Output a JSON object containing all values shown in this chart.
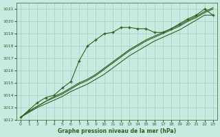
{
  "background_color": "#c8eae0",
  "grid_color": "#a8d4c8",
  "line_color": "#2d6020",
  "title": "Graphe pression niveau de la mer (hPa)",
  "xlim": [
    -0.5,
    23.5
  ],
  "ylim": [
    1012,
    1021.5
  ],
  "xticks": [
    0,
    1,
    2,
    3,
    4,
    5,
    6,
    7,
    8,
    9,
    10,
    11,
    12,
    13,
    14,
    15,
    16,
    17,
    18,
    19,
    20,
    21,
    22,
    23
  ],
  "yticks": [
    1012,
    1013,
    1014,
    1015,
    1016,
    1017,
    1018,
    1019,
    1020,
    1021
  ],
  "series_spike_x": [
    0,
    1,
    2,
    3,
    4,
    5,
    6,
    7,
    8,
    9,
    10,
    11,
    12,
    13,
    14,
    15,
    16,
    17,
    18,
    19,
    20,
    21,
    22,
    23
  ],
  "series_spike_y": [
    1012.2,
    1012.8,
    1013.4,
    1013.8,
    1014.0,
    1014.6,
    1015.1,
    1016.8,
    1018.0,
    1018.5,
    1019.0,
    1019.1,
    1019.5,
    1019.5,
    1019.4,
    1019.4,
    1019.1,
    1019.1,
    1019.4,
    1019.8,
    1020.2,
    1020.5,
    1021.0,
    1020.5
  ],
  "series_line1_x": [
    0,
    1,
    2,
    3,
    4,
    5,
    6,
    7,
    8,
    9,
    10,
    11,
    12,
    13,
    14,
    15,
    16,
    17,
    18,
    19,
    20,
    21,
    22,
    23
  ],
  "series_line1_y": [
    1012.2,
    1012.6,
    1013.0,
    1013.3,
    1013.6,
    1013.9,
    1014.3,
    1014.6,
    1014.9,
    1015.3,
    1015.7,
    1016.2,
    1016.7,
    1017.2,
    1017.6,
    1018.0,
    1018.4,
    1018.7,
    1019.0,
    1019.3,
    1019.7,
    1020.1,
    1020.5,
    1020.5
  ],
  "series_line2_x": [
    0,
    1,
    2,
    3,
    4,
    5,
    6,
    7,
    8,
    9,
    10,
    11,
    12,
    13,
    14,
    15,
    16,
    17,
    18,
    19,
    20,
    21,
    22,
    23
  ],
  "series_line2_y": [
    1012.2,
    1012.7,
    1013.1,
    1013.5,
    1013.8,
    1014.1,
    1014.5,
    1014.9,
    1015.2,
    1015.6,
    1016.1,
    1016.6,
    1017.1,
    1017.6,
    1018.0,
    1018.4,
    1018.7,
    1019.0,
    1019.3,
    1019.6,
    1020.0,
    1020.3,
    1020.7,
    1021.0
  ],
  "series_line3_x": [
    0,
    1,
    2,
    3,
    4,
    5,
    6,
    7,
    8,
    9,
    10,
    11,
    12,
    13,
    14,
    15,
    16,
    17,
    18,
    19,
    20,
    21,
    22,
    23
  ],
  "series_line3_y": [
    1012.2,
    1012.7,
    1013.1,
    1013.5,
    1013.9,
    1014.2,
    1014.6,
    1015.0,
    1015.3,
    1015.7,
    1016.2,
    1016.7,
    1017.2,
    1017.7,
    1018.1,
    1018.5,
    1018.8,
    1019.1,
    1019.4,
    1019.7,
    1020.1,
    1020.4,
    1020.8,
    1021.1
  ]
}
